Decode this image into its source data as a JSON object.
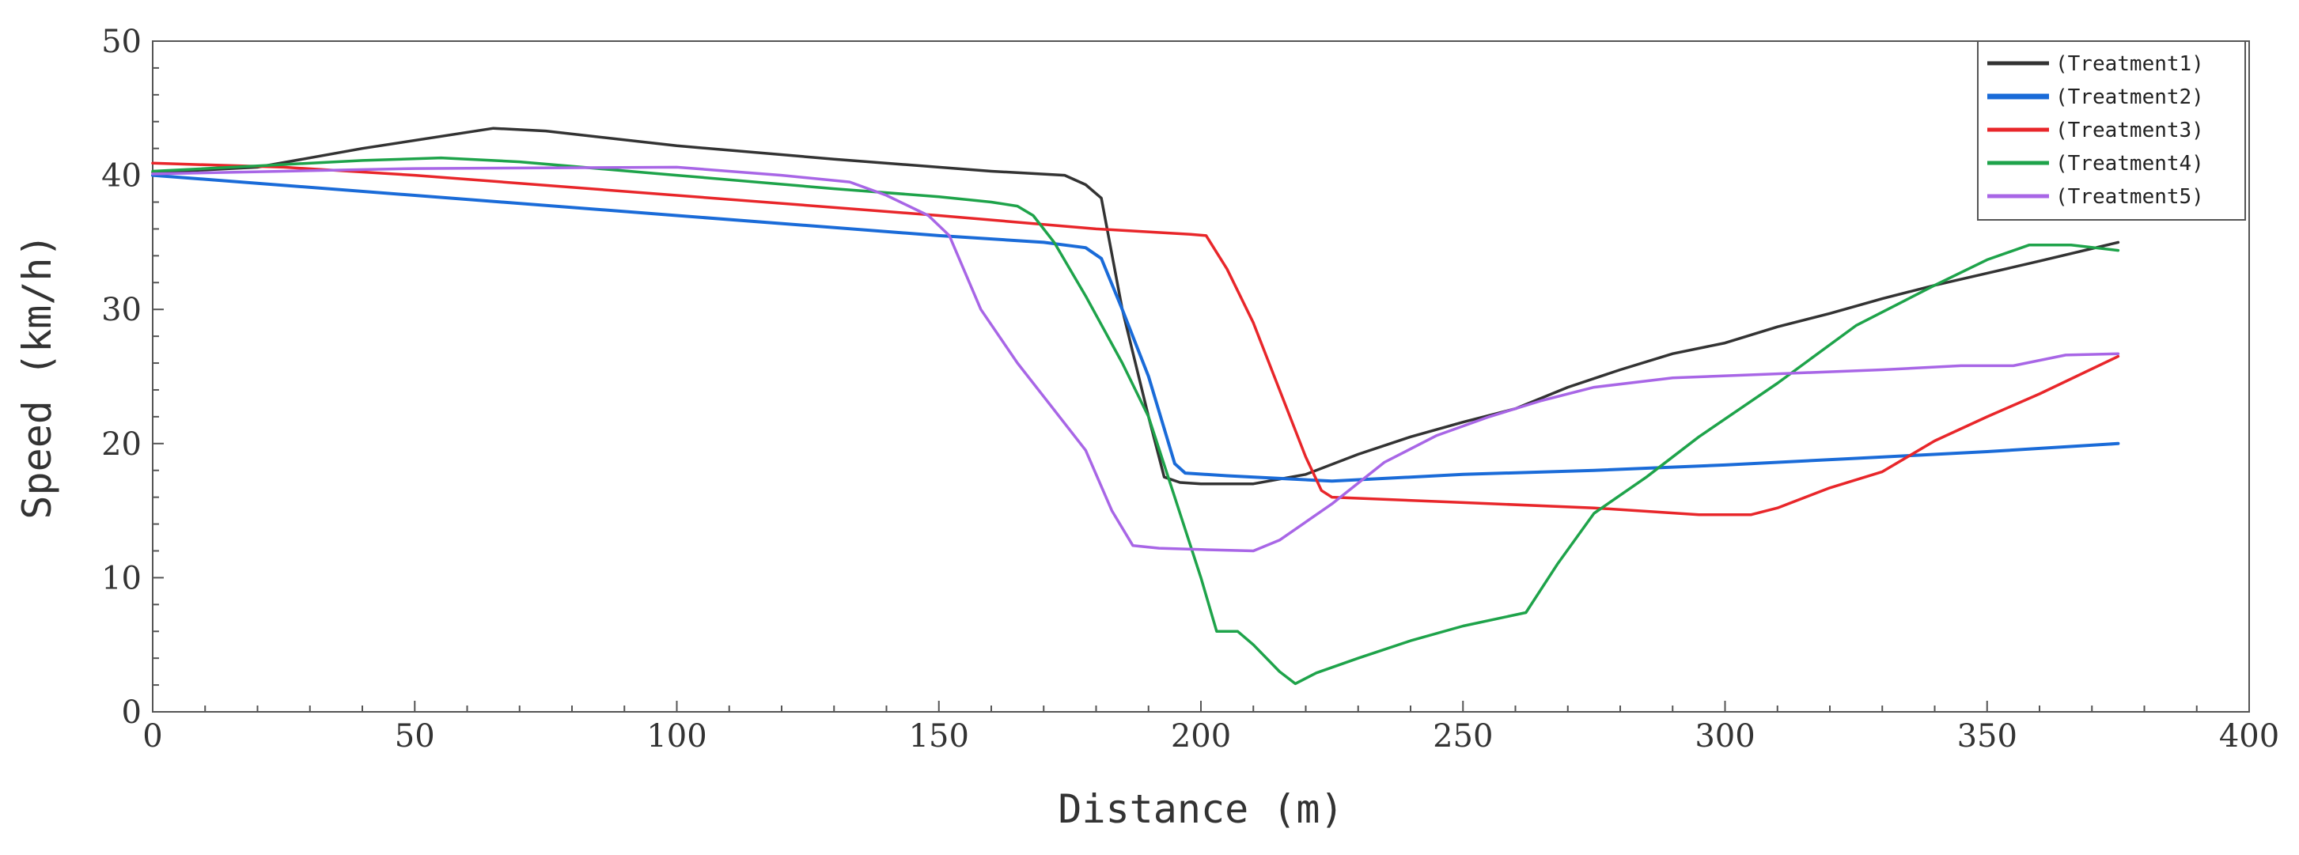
{
  "chart_data": {
    "type": "line",
    "title": "",
    "xlabel": "Distance (m)",
    "ylabel": "Speed (km/h)",
    "xlim": [
      0,
      400
    ],
    "ylim": [
      0,
      50
    ],
    "xticks": [
      0,
      50,
      100,
      150,
      200,
      250,
      300,
      350,
      400
    ],
    "yticks": [
      0,
      10,
      20,
      30,
      40,
      50
    ],
    "grid": false,
    "legend_position": "top-right",
    "series": [
      {
        "name": "(Treatment1)",
        "color": "#333333",
        "points": [
          [
            0,
            40.2
          ],
          [
            20,
            40.6
          ],
          [
            40,
            42
          ],
          [
            65,
            43.5
          ],
          [
            75,
            43.3
          ],
          [
            100,
            42.2
          ],
          [
            130,
            41.2
          ],
          [
            160,
            40.3
          ],
          [
            174,
            40
          ],
          [
            178,
            39.3
          ],
          [
            181,
            38.3
          ],
          [
            185,
            30
          ],
          [
            190,
            22
          ],
          [
            193,
            17.5
          ],
          [
            196,
            17.1
          ],
          [
            200,
            17
          ],
          [
            210,
            17
          ],
          [
            220,
            17.7
          ],
          [
            230,
            19.2
          ],
          [
            240,
            20.5
          ],
          [
            250,
            21.6
          ],
          [
            260,
            22.6
          ],
          [
            270,
            24.2
          ],
          [
            280,
            25.5
          ],
          [
            290,
            26.7
          ],
          [
            300,
            27.5
          ],
          [
            310,
            28.7
          ],
          [
            320,
            29.7
          ],
          [
            330,
            30.8
          ],
          [
            340,
            31.8
          ],
          [
            350,
            32.7
          ],
          [
            360,
            33.6
          ],
          [
            375,
            35
          ]
        ]
      },
      {
        "name": "(Treatment2)",
        "color": "#1a6bd8",
        "points": [
          [
            0,
            40
          ],
          [
            50,
            38.5
          ],
          [
            100,
            37
          ],
          [
            150,
            35.5
          ],
          [
            170,
            35
          ],
          [
            178,
            34.6
          ],
          [
            181,
            33.8
          ],
          [
            185,
            30
          ],
          [
            190,
            25
          ],
          [
            195,
            18.5
          ],
          [
            197,
            17.8
          ],
          [
            205,
            17.6
          ],
          [
            215,
            17.4
          ],
          [
            225,
            17.2
          ],
          [
            250,
            17.7
          ],
          [
            275,
            18
          ],
          [
            300,
            18.4
          ],
          [
            325,
            18.9
          ],
          [
            350,
            19.4
          ],
          [
            375,
            20
          ]
        ]
      },
      {
        "name": "(Treatment3)",
        "color": "#e8262a",
        "points": [
          [
            0,
            40.9
          ],
          [
            25,
            40.6
          ],
          [
            50,
            40
          ],
          [
            100,
            38.5
          ],
          [
            150,
            37
          ],
          [
            180,
            36
          ],
          [
            198,
            35.6
          ],
          [
            201,
            35.5
          ],
          [
            205,
            33
          ],
          [
            210,
            29
          ],
          [
            215,
            24
          ],
          [
            220,
            19
          ],
          [
            223,
            16.5
          ],
          [
            225,
            16
          ],
          [
            250,
            15.6
          ],
          [
            275,
            15.2
          ],
          [
            295,
            14.7
          ],
          [
            305,
            14.7
          ],
          [
            310,
            15.2
          ],
          [
            320,
            16.7
          ],
          [
            330,
            17.9
          ],
          [
            340,
            20.2
          ],
          [
            350,
            22
          ],
          [
            360,
            23.7
          ],
          [
            375,
            26.5
          ]
        ]
      },
      {
        "name": "(Treatment4)",
        "color": "#1ea34a",
        "points": [
          [
            0,
            40.3
          ],
          [
            20,
            40.7
          ],
          [
            40,
            41.1
          ],
          [
            55,
            41.3
          ],
          [
            70,
            41
          ],
          [
            100,
            40
          ],
          [
            130,
            39
          ],
          [
            150,
            38.4
          ],
          [
            160,
            38
          ],
          [
            165,
            37.7
          ],
          [
            168,
            37
          ],
          [
            172,
            35
          ],
          [
            178,
            31
          ],
          [
            185,
            26
          ],
          [
            190,
            22
          ],
          [
            195,
            16
          ],
          [
            200,
            10
          ],
          [
            203,
            6
          ],
          [
            207,
            6
          ],
          [
            210,
            5
          ],
          [
            215,
            3
          ],
          [
            218,
            2.1
          ],
          [
            222,
            2.9
          ],
          [
            230,
            4
          ],
          [
            240,
            5.3
          ],
          [
            250,
            6.4
          ],
          [
            262,
            7.4
          ],
          [
            268,
            11
          ],
          [
            275,
            14.8
          ],
          [
            285,
            17.5
          ],
          [
            295,
            20.5
          ],
          [
            310,
            24.5
          ],
          [
            325,
            28.8
          ],
          [
            340,
            31.8
          ],
          [
            350,
            33.7
          ],
          [
            358,
            34.8
          ],
          [
            366,
            34.8
          ],
          [
            375,
            34.4
          ]
        ]
      },
      {
        "name": "(Treatment5)",
        "color": "#a866e6",
        "points": [
          [
            0,
            40.1
          ],
          [
            25,
            40.3
          ],
          [
            50,
            40.5
          ],
          [
            100,
            40.6
          ],
          [
            120,
            40
          ],
          [
            133,
            39.5
          ],
          [
            140,
            38.5
          ],
          [
            148,
            37
          ],
          [
            152,
            35.5
          ],
          [
            158,
            30
          ],
          [
            165,
            26
          ],
          [
            170,
            23.5
          ],
          [
            178,
            19.5
          ],
          [
            183,
            15
          ],
          [
            187,
            12.4
          ],
          [
            192,
            12.2
          ],
          [
            200,
            12.1
          ],
          [
            210,
            12
          ],
          [
            215,
            12.8
          ],
          [
            225,
            15.5
          ],
          [
            235,
            18.6
          ],
          [
            245,
            20.6
          ],
          [
            255,
            22
          ],
          [
            265,
            23.2
          ],
          [
            275,
            24.2
          ],
          [
            290,
            24.9
          ],
          [
            310,
            25.2
          ],
          [
            330,
            25.5
          ],
          [
            345,
            25.8
          ],
          [
            355,
            25.8
          ],
          [
            365,
            26.6
          ],
          [
            375,
            26.7
          ]
        ]
      }
    ]
  }
}
